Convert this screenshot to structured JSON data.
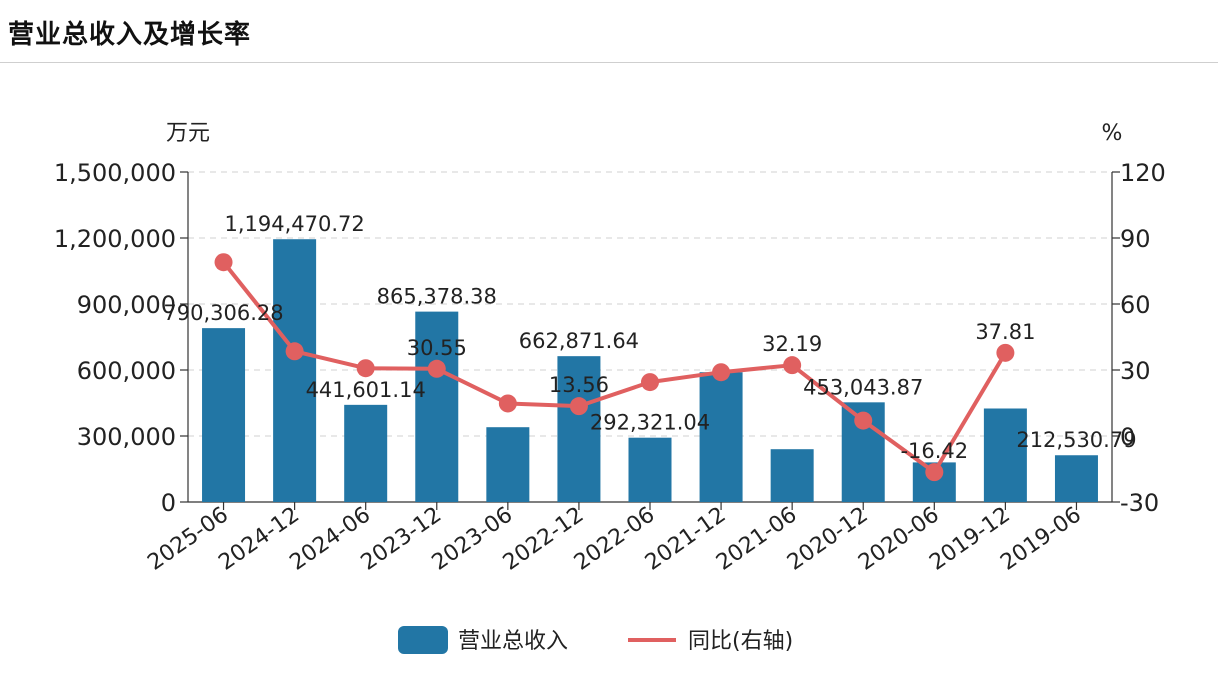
{
  "page": {
    "title": "营业总收入及增长率"
  },
  "chart_data": {
    "type": "bar",
    "categories": [
      "2025-06",
      "2024-12",
      "2024-06",
      "2023-12",
      "2023-06",
      "2022-12",
      "2022-06",
      "2021-12",
      "2021-06",
      "2020-12",
      "2020-06",
      "2019-12",
      "2019-06"
    ],
    "series": [
      {
        "name": "营业总收入",
        "type": "bar",
        "axis": "left",
        "color": "#2276a5",
        "values": [
          790306.28,
          1194470.72,
          441601.14,
          865378.38,
          340000,
          662871.64,
          292321.04,
          590000,
          240000,
          453043.87,
          180000,
          425000,
          212530.79
        ],
        "labels": [
          "790,306.28",
          "1,194,470.72",
          "441,601.14",
          "865,378.38",
          "",
          "662,871.64",
          "292,321.04",
          "",
          "",
          "453,043.87",
          "",
          "",
          "212,530.79"
        ]
      },
      {
        "name": "同比(右轴)",
        "type": "line",
        "axis": "right",
        "color": "#e06060",
        "values": [
          79,
          38.5,
          30.8,
          30.55,
          14.8,
          13.56,
          24.5,
          29,
          32.19,
          7,
          -16.42,
          37.81,
          null
        ],
        "labels": [
          "",
          "",
          "",
          "30.55",
          "",
          "13.56",
          "",
          "",
          "32.19",
          "",
          "-16.42",
          "37.81",
          ""
        ]
      }
    ],
    "left_axis": {
      "unit": "万元",
      "ylim": [
        0,
        1500000
      ],
      "ticks": [
        "0",
        "300,000",
        "600,000",
        "900,000",
        "1,200,000",
        "1,500,000"
      ]
    },
    "right_axis": {
      "unit": "%",
      "ylim": [
        -30,
        120
      ],
      "ticks": [
        "-30",
        "0",
        "30",
        "60",
        "90",
        "120"
      ]
    },
    "grid": true,
    "legend": "bottom"
  }
}
